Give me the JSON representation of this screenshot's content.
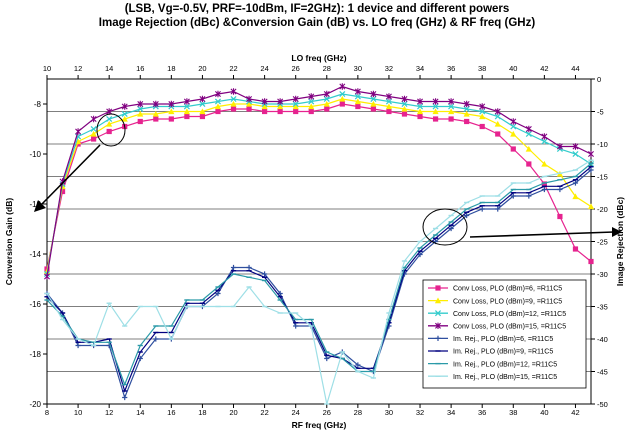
{
  "chart_data": {
    "type": "line",
    "title": [
      "(LSB, Vg=-0.5V, PRF=-10dBm, IF=2GHz): 1 device and different powers",
      "Image Rejection (dBc) &Conversion Gain (dB)  vs. LO freq (GHz) & RF freq (GHz)"
    ],
    "xlabel": "RF freq (GHz)",
    "x2label": "LO freq (GHz)",
    "ylabel": "Conversion Gain (dB)",
    "y2label": "Image Rejection (dBc)",
    "xlim": [
      8,
      43
    ],
    "x2lim": [
      10,
      45
    ],
    "ylim": [
      -20,
      -7
    ],
    "y2lim": [
      -50,
      0
    ],
    "x_ticks": [
      "8",
      "10",
      "12",
      "14",
      "16",
      "18",
      "20",
      "22",
      "24",
      "26",
      "28",
      "30",
      "32",
      "34",
      "36",
      "38",
      "40",
      "42"
    ],
    "x2_ticks": [
      "10",
      "12",
      "14",
      "16",
      "18",
      "20",
      "22",
      "24",
      "26",
      "28",
      "30",
      "32",
      "34",
      "36",
      "38",
      "40",
      "42",
      "44"
    ],
    "y_ticks": [
      "-8",
      "-10",
      "-12",
      "-14",
      "-16",
      "-18",
      "-20"
    ],
    "y2_ticks": [
      "0",
      "-5",
      "-10",
      "-15",
      "-20",
      "-25",
      "-30",
      "-35",
      "-40",
      "-45",
      "-50"
    ],
    "grid": "horizontal",
    "legend_position": "bottom-right",
    "x": [
      8,
      9,
      10,
      11,
      12,
      13,
      14,
      15,
      16,
      17,
      18,
      19,
      20,
      21,
      22,
      23,
      24,
      25,
      26,
      27,
      28,
      29,
      30,
      31,
      32,
      33,
      34,
      35,
      36,
      37,
      38,
      39,
      40,
      41,
      42,
      43
    ],
    "series": [
      {
        "name": "Conv Loss, PLO (dBm)=6, =R11C5",
        "axis": "left",
        "color": "#e6238f",
        "marker": "square",
        "values": [
          -14.6,
          -11.5,
          -9.6,
          -9.4,
          -9.1,
          -8.9,
          -8.7,
          -8.6,
          -8.6,
          -8.5,
          -8.5,
          -8.3,
          -8.2,
          -8.2,
          -8.3,
          -8.3,
          -8.3,
          -8.3,
          -8.2,
          -8.0,
          -8.1,
          -8.2,
          -8.3,
          -8.4,
          -8.5,
          -8.6,
          -8.6,
          -8.7,
          -8.9,
          -9.2,
          -9.8,
          -10.4,
          -11.2,
          -12.5,
          -13.8,
          -14.3
        ]
      },
      {
        "name": "Conv Loss, PLO (dBm)=9, =R11C5",
        "axis": "left",
        "color": "#ffee00",
        "marker": "triangle",
        "values": [
          -14.7,
          -11.3,
          -9.5,
          -9.2,
          -8.8,
          -8.6,
          -8.4,
          -8.4,
          -8.3,
          -8.3,
          -8.3,
          -8.1,
          -8.0,
          -8.0,
          -8.1,
          -8.1,
          -8.1,
          -8.1,
          -8.0,
          -7.8,
          -7.9,
          -8.0,
          -8.1,
          -8.2,
          -8.3,
          -8.3,
          -8.3,
          -8.4,
          -8.5,
          -8.8,
          -9.2,
          -9.8,
          -10.4,
          -10.8,
          -11.7,
          -12.1
        ]
      },
      {
        "name": "Conv Loss, PLO (dBm)=12, =R11C5",
        "axis": "left",
        "color": "#33cccc",
        "marker": "x",
        "values": [
          -14.8,
          -11.2,
          -9.3,
          -9.0,
          -8.6,
          -8.4,
          -8.2,
          -8.1,
          -8.1,
          -8.1,
          -8.0,
          -7.9,
          -7.8,
          -7.9,
          -8.0,
          -8.0,
          -8.0,
          -7.9,
          -7.8,
          -7.6,
          -7.7,
          -7.8,
          -7.9,
          -8.0,
          -8.1,
          -8.1,
          -8.1,
          -8.2,
          -8.3,
          -8.5,
          -8.9,
          -9.2,
          -9.5,
          -9.8,
          -10.0,
          -10.4
        ]
      },
      {
        "name": "Conv Loss, PLO (dBm)=15, =R11C5",
        "axis": "left",
        "color": "#800080",
        "marker": "star",
        "values": [
          -14.9,
          -11.1,
          -9.1,
          -8.6,
          -8.3,
          -8.1,
          -8.0,
          -8.0,
          -8.0,
          -7.9,
          -7.8,
          -7.6,
          -7.5,
          -7.8,
          -7.9,
          -7.9,
          -7.8,
          -7.7,
          -7.6,
          -7.3,
          -7.5,
          -7.6,
          -7.7,
          -7.8,
          -7.9,
          -7.9,
          -7.9,
          -8.0,
          -8.1,
          -8.3,
          -8.7,
          -9.0,
          -9.3,
          -9.7,
          -9.7,
          -10.0
        ]
      },
      {
        "name": "Im. Rej., PLO (dBm)=6, =R11C5",
        "axis": "right",
        "color": "#2f4f9f",
        "marker": "plus",
        "values": [
          -33,
          -36,
          -41,
          -41,
          -41,
          -49,
          -43,
          -40,
          -40,
          -35,
          -35,
          -33,
          -29,
          -29,
          -30,
          -33,
          -38,
          -38,
          -43,
          -42,
          -44,
          -45,
          -38,
          -30,
          -27,
          -25,
          -23,
          -21,
          -20,
          -20,
          -18,
          -18,
          -17,
          -17,
          -16,
          -14
        ]
      },
      {
        "name": "Im. Rej., PLO (dBm)=9, =R11C5",
        "axis": "right",
        "color": "#000080",
        "marker": "dash",
        "values": [
          -33.5,
          -36,
          -40.5,
          -40.5,
          -40,
          -48,
          -42,
          -39,
          -39,
          -34.5,
          -34.5,
          -32.5,
          -29.5,
          -29.5,
          -30.5,
          -33.5,
          -37.5,
          -37.5,
          -42.5,
          -43,
          -44.5,
          -44.5,
          -37.5,
          -29.5,
          -26.5,
          -24.5,
          -22.5,
          -20.5,
          -19.5,
          -19.5,
          -17.5,
          -17.5,
          -16.5,
          -16.5,
          -15.5,
          -13.5
        ]
      },
      {
        "name": "Im. Rej., PLO (dBm)=12, =R11C5",
        "axis": "right",
        "color": "#2b9aa8",
        "marker": "dash",
        "values": [
          -34,
          -36.5,
          -40,
          -40.5,
          -40.5,
          -47,
          -41,
          -38,
          -38,
          -34,
          -34,
          -32,
          -30,
          -30.5,
          -31,
          -34,
          -37,
          -37,
          -42,
          -43,
          -45,
          -45,
          -37,
          -29,
          -26,
          -24,
          -22,
          -20,
          -19,
          -19,
          -17,
          -17,
          -16,
          -15.5,
          -15,
          -13
        ]
      },
      {
        "name": "Im. Rej., PLO (dBm)=15, =R11C5",
        "axis": "right",
        "color": "#9edfe6",
        "marker": "dash",
        "values": [
          -33,
          -37,
          -40,
          -41,
          -34.5,
          -38,
          -35,
          -35,
          -40,
          -35,
          -35,
          -35,
          -35,
          -32,
          -35,
          -36,
          -36,
          -38,
          -50,
          -42,
          -45,
          -46,
          -36,
          -28,
          -25,
          -23,
          -21,
          -19,
          -18,
          -18,
          -16,
          -16,
          -15,
          -14.5,
          -14,
          -12.5
        ]
      }
    ]
  }
}
